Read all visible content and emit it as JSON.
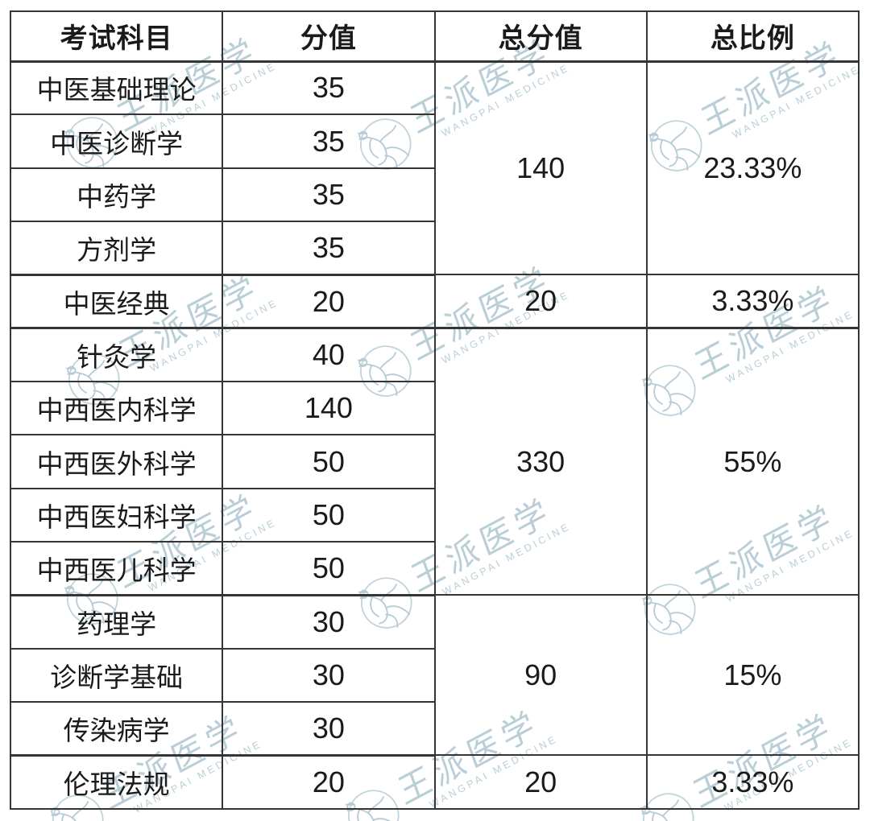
{
  "table": {
    "headers": [
      "考试科目",
      "分值",
      "总分值",
      "总比例"
    ],
    "rows": [
      {
        "subject": "中医基础理论",
        "score": "35"
      },
      {
        "subject": "中医诊断学",
        "score": "35"
      },
      {
        "subject": "中药学",
        "score": "35"
      },
      {
        "subject": "方剂学",
        "score": "35"
      },
      {
        "subject": "中医经典",
        "score": "20"
      },
      {
        "subject": "针灸学",
        "score": "40"
      },
      {
        "subject": "中西医内科学",
        "score": "140"
      },
      {
        "subject": "中西医外科学",
        "score": "50"
      },
      {
        "subject": "中西医妇科学",
        "score": "50"
      },
      {
        "subject": "中西医儿科学",
        "score": "50"
      },
      {
        "subject": "药理学",
        "score": "30"
      },
      {
        "subject": "诊断学基础",
        "score": "30"
      },
      {
        "subject": "传染病学",
        "score": "30"
      },
      {
        "subject": "伦理法规",
        "score": "20"
      }
    ],
    "groups": [
      {
        "total": "140",
        "ratio": "23.33%",
        "span": 4
      },
      {
        "total": "20",
        "ratio": "3.33%",
        "span": 1
      },
      {
        "total": "330",
        "ratio": "55%",
        "span": 5
      },
      {
        "total": "90",
        "ratio": "15%",
        "span": 3
      },
      {
        "total": "20",
        "ratio": "3.33%",
        "span": 1
      }
    ]
  },
  "watermark": {
    "brand": "王派医学",
    "caption": "WANGPAI MEDICINE",
    "color": "#b3c9d3"
  },
  "colors": {
    "border": "#353535",
    "text": "#1a1a1a",
    "background": "#ffffff"
  }
}
